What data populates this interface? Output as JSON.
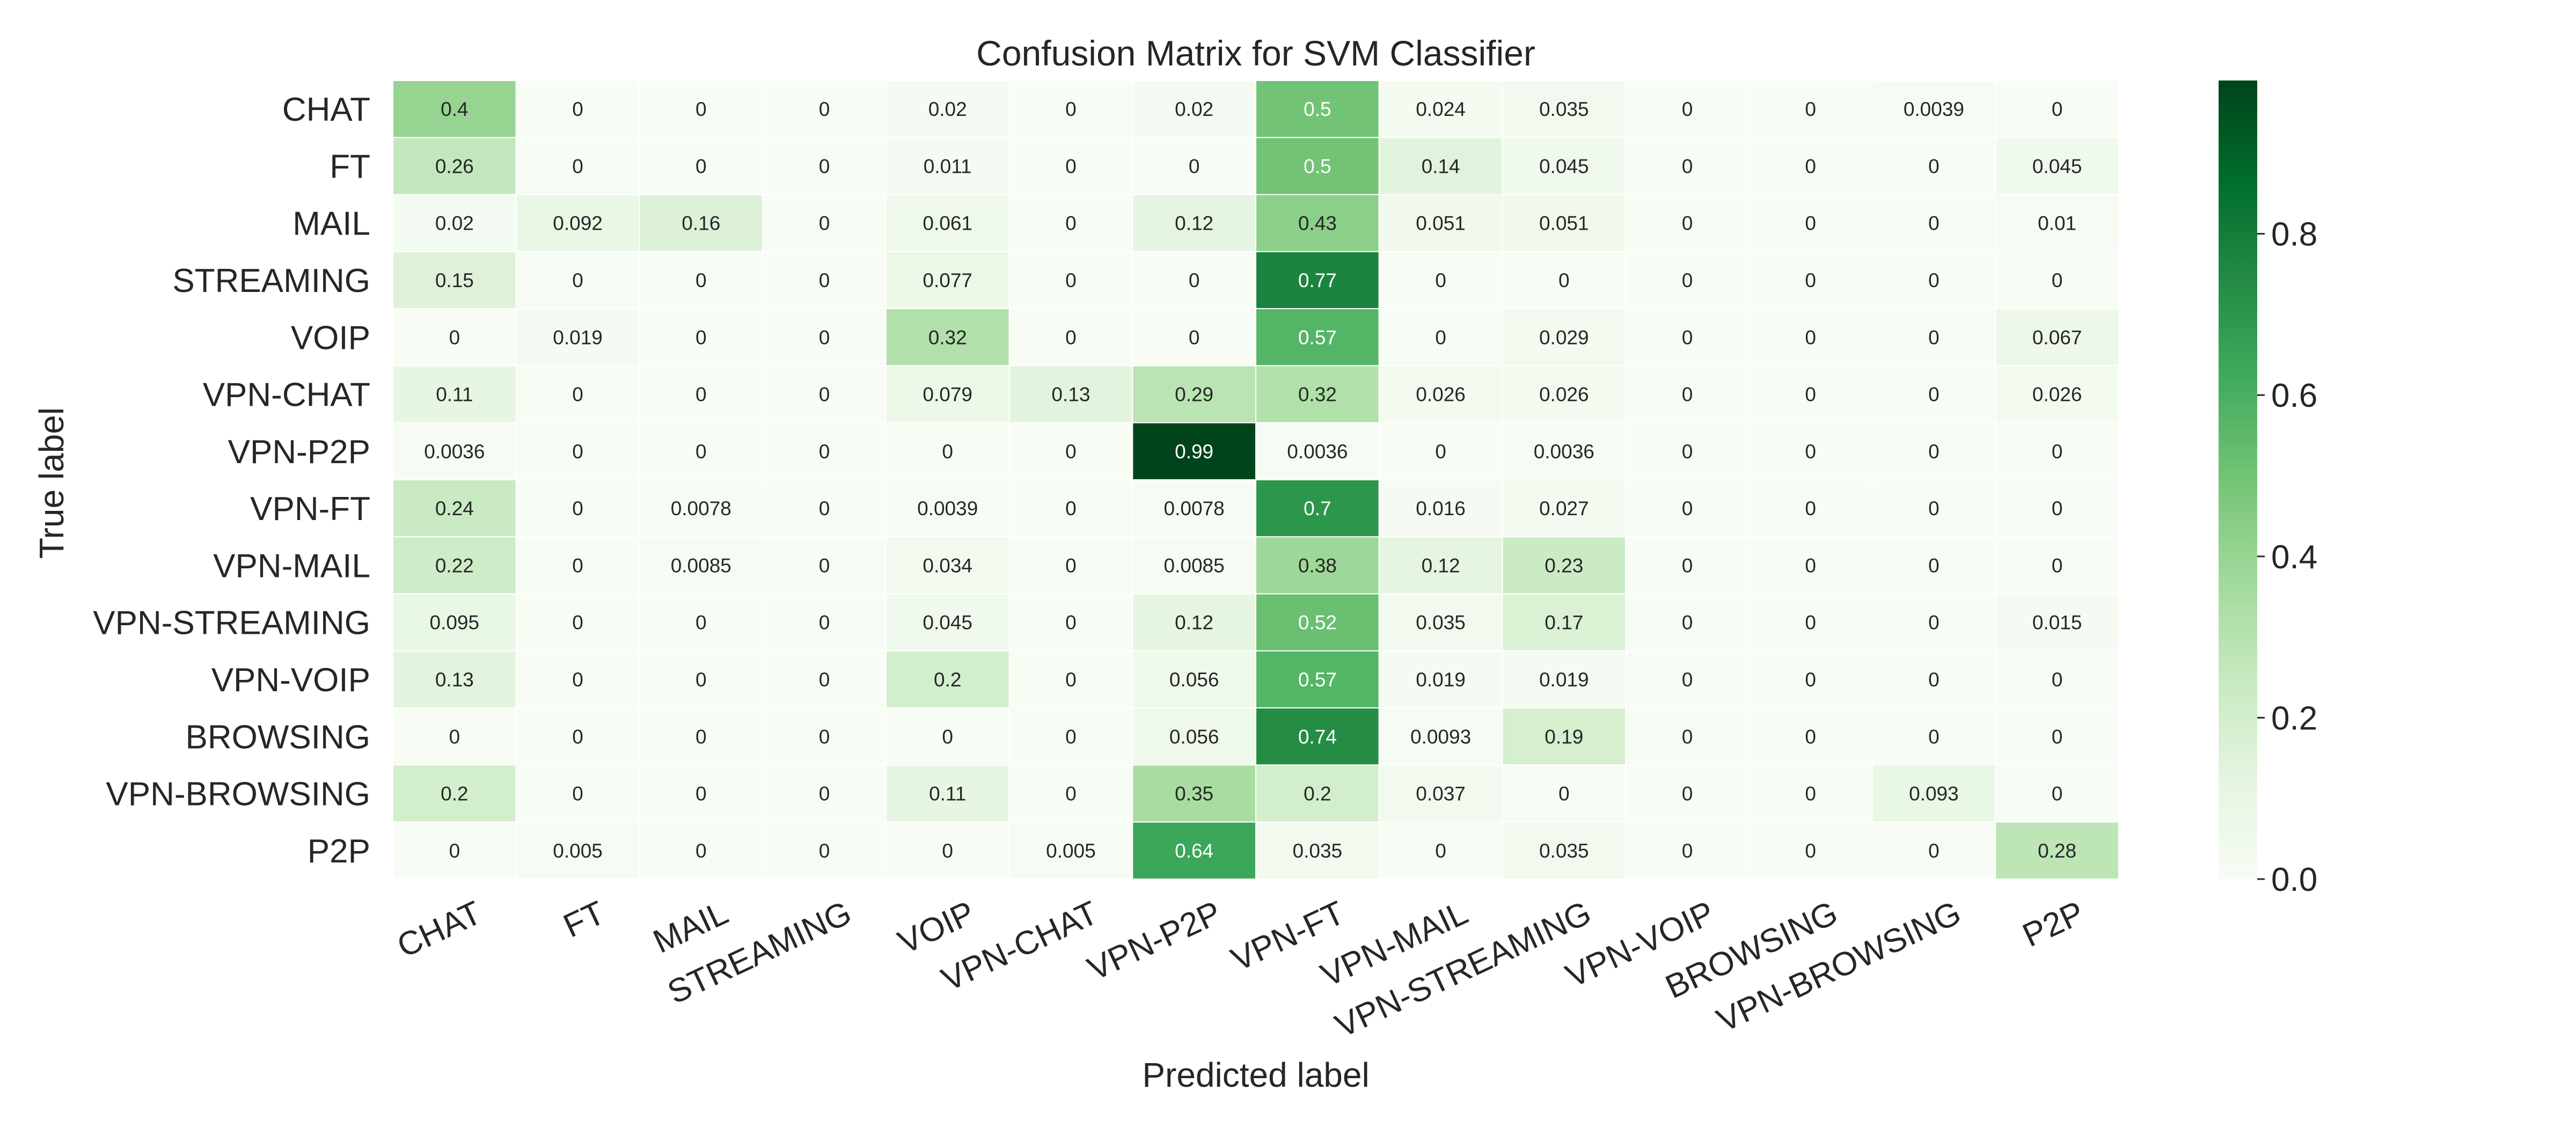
{
  "chart_data": {
    "type": "heatmap",
    "title": "Confusion Matrix for SVM Classifier",
    "xlabel": "Predicted label",
    "ylabel": "True label",
    "x_categories": [
      "CHAT",
      "FT",
      "MAIL",
      "STREAMING",
      "VOIP",
      "VPN-CHAT",
      "VPN-P2P",
      "VPN-FT",
      "VPN-MAIL",
      "VPN-STREAMING",
      "VPN-VOIP",
      "BROWSING",
      "VPN-BROWSING",
      "P2P"
    ],
    "y_categories": [
      "CHAT",
      "FT",
      "MAIL",
      "STREAMING",
      "VOIP",
      "VPN-CHAT",
      "VPN-P2P",
      "VPN-FT",
      "VPN-MAIL",
      "VPN-STREAMING",
      "VPN-VOIP",
      "BROWSING",
      "VPN-BROWSING",
      "P2P"
    ],
    "values": [
      [
        "0.4",
        "0",
        "0",
        "0",
        "0.02",
        "0",
        "0.02",
        "0.5",
        "0.024",
        "0.035",
        "0",
        "0",
        "0.0039",
        "0"
      ],
      [
        "0.26",
        "0",
        "0",
        "0",
        "0.011",
        "0",
        "0",
        "0.5",
        "0.14",
        "0.045",
        "0",
        "0",
        "0",
        "0.045"
      ],
      [
        "0.02",
        "0.092",
        "0.16",
        "0",
        "0.061",
        "0",
        "0.12",
        "0.43",
        "0.051",
        "0.051",
        "0",
        "0",
        "0",
        "0.01"
      ],
      [
        "0.15",
        "0",
        "0",
        "0",
        "0.077",
        "0",
        "0",
        "0.77",
        "0",
        "0",
        "0",
        "0",
        "0",
        "0"
      ],
      [
        "0",
        "0.019",
        "0",
        "0",
        "0.32",
        "0",
        "0",
        "0.57",
        "0",
        "0.029",
        "0",
        "0",
        "0",
        "0.067"
      ],
      [
        "0.11",
        "0",
        "0",
        "0",
        "0.079",
        "0.13",
        "0.29",
        "0.32",
        "0.026",
        "0.026",
        "0",
        "0",
        "0",
        "0.026"
      ],
      [
        "0.0036",
        "0",
        "0",
        "0",
        "0",
        "0",
        "0.99",
        "0.0036",
        "0",
        "0.0036",
        "0",
        "0",
        "0",
        "0"
      ],
      [
        "0.24",
        "0",
        "0.0078",
        "0",
        "0.0039",
        "0",
        "0.0078",
        "0.7",
        "0.016",
        "0.027",
        "0",
        "0",
        "0",
        "0"
      ],
      [
        "0.22",
        "0",
        "0.0085",
        "0",
        "0.034",
        "0",
        "0.0085",
        "0.38",
        "0.12",
        "0.23",
        "0",
        "0",
        "0",
        "0"
      ],
      [
        "0.095",
        "0",
        "0",
        "0",
        "0.045",
        "0",
        "0.12",
        "0.52",
        "0.035",
        "0.17",
        "0",
        "0",
        "0",
        "0.015"
      ],
      [
        "0.13",
        "0",
        "0",
        "0",
        "0.2",
        "0",
        "0.056",
        "0.57",
        "0.019",
        "0.019",
        "0",
        "0",
        "0",
        "0"
      ],
      [
        "0",
        "0",
        "0",
        "0",
        "0",
        "0",
        "0.056",
        "0.74",
        "0.0093",
        "0.19",
        "0",
        "0",
        "0",
        "0"
      ],
      [
        "0.2",
        "0",
        "0",
        "0",
        "0.11",
        "0",
        "0.35",
        "0.2",
        "0.037",
        "0",
        "0",
        "0",
        "0.093",
        "0"
      ],
      [
        "0",
        "0.005",
        "0",
        "0",
        "0",
        "0.005",
        "0.64",
        "0.035",
        "0",
        "0.035",
        "0",
        "0",
        "0",
        "0.28"
      ]
    ],
    "colorbar": {
      "min": 0,
      "max": 0.99,
      "ticks": [
        "0.0",
        "0.2",
        "0.4",
        "0.6",
        "0.8"
      ],
      "colormap": "Greens"
    },
    "colors": {
      "low": "#f7fcf5",
      "high": "#00441b"
    }
  }
}
